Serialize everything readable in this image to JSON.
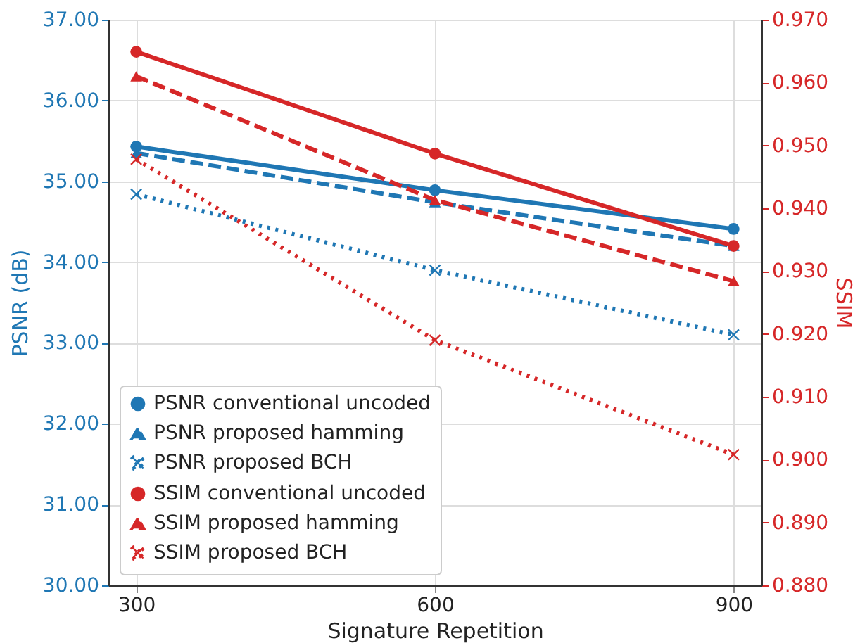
{
  "chart_data": {
    "type": "line",
    "xlabel": "Signature Repetition",
    "ylabel": "PSNR (dB)",
    "y2label": "SSIM",
    "x": [
      300,
      600,
      900
    ],
    "xlim": [
      272,
      928
    ],
    "xticks": [
      300,
      600,
      900
    ],
    "ylim": [
      30,
      37
    ],
    "yticks": [
      {
        "value": 30,
        "label": "30.00"
      },
      {
        "value": 31,
        "label": "31.00"
      },
      {
        "value": 32,
        "label": "32.00"
      },
      {
        "value": 33,
        "label": "33.00"
      },
      {
        "value": 34,
        "label": "34.00"
      },
      {
        "value": 35,
        "label": "35.00"
      },
      {
        "value": 36,
        "label": "36.00"
      },
      {
        "value": 37,
        "label": "37.00"
      }
    ],
    "y2lim": [
      0.88,
      0.97
    ],
    "y2ticks": [
      {
        "value": 0.88,
        "label": "0.880"
      },
      {
        "value": 0.89,
        "label": "0.890"
      },
      {
        "value": 0.9,
        "label": "0.900"
      },
      {
        "value": 0.91,
        "label": "0.910"
      },
      {
        "value": 0.92,
        "label": "0.920"
      },
      {
        "value": 0.93,
        "label": "0.930"
      },
      {
        "value": 0.94,
        "label": "0.940"
      },
      {
        "value": 0.95,
        "label": "0.950"
      },
      {
        "value": 0.96,
        "label": "0.960"
      },
      {
        "value": 0.97,
        "label": "0.970"
      }
    ],
    "grid": true,
    "legend": "bottom left",
    "series": [
      {
        "name": "PSNR conventional uncoded",
        "color": "#1f77b4",
        "values": [
          35.43,
          34.89,
          34.41
        ],
        "line_style": "solid",
        "marker": "circle"
      },
      {
        "name": "PSNR proposed hamming",
        "color": "#1f77b4",
        "values": [
          35.35,
          34.74,
          34.2
        ],
        "line_style": "dashed",
        "marker": "triangle"
      },
      {
        "name": "PSNR proposed BCH",
        "color": "#1f77b4",
        "values": [
          34.84,
          33.9,
          33.1
        ],
        "line_style": "dotted",
        "marker": "cross"
      },
      {
        "name": "SSIM conventional uncoded",
        "color": "#d62728",
        "values": [
          0.9649,
          0.9487,
          0.934
        ],
        "axis": "y2",
        "line_style": "solid",
        "marker": "circle"
      },
      {
        "name": "SSIM proposed hamming",
        "color": "#d62728",
        "values": [
          0.961,
          0.9413,
          0.9284
        ],
        "axis": "y2",
        "line_style": "dashed",
        "marker": "triangle"
      },
      {
        "name": "SSIM proposed BCH",
        "color": "#d62728",
        "values": [
          0.9478,
          0.919,
          0.9008
        ],
        "axis": "y2",
        "line_style": "dotted",
        "marker": "cross"
      }
    ]
  }
}
